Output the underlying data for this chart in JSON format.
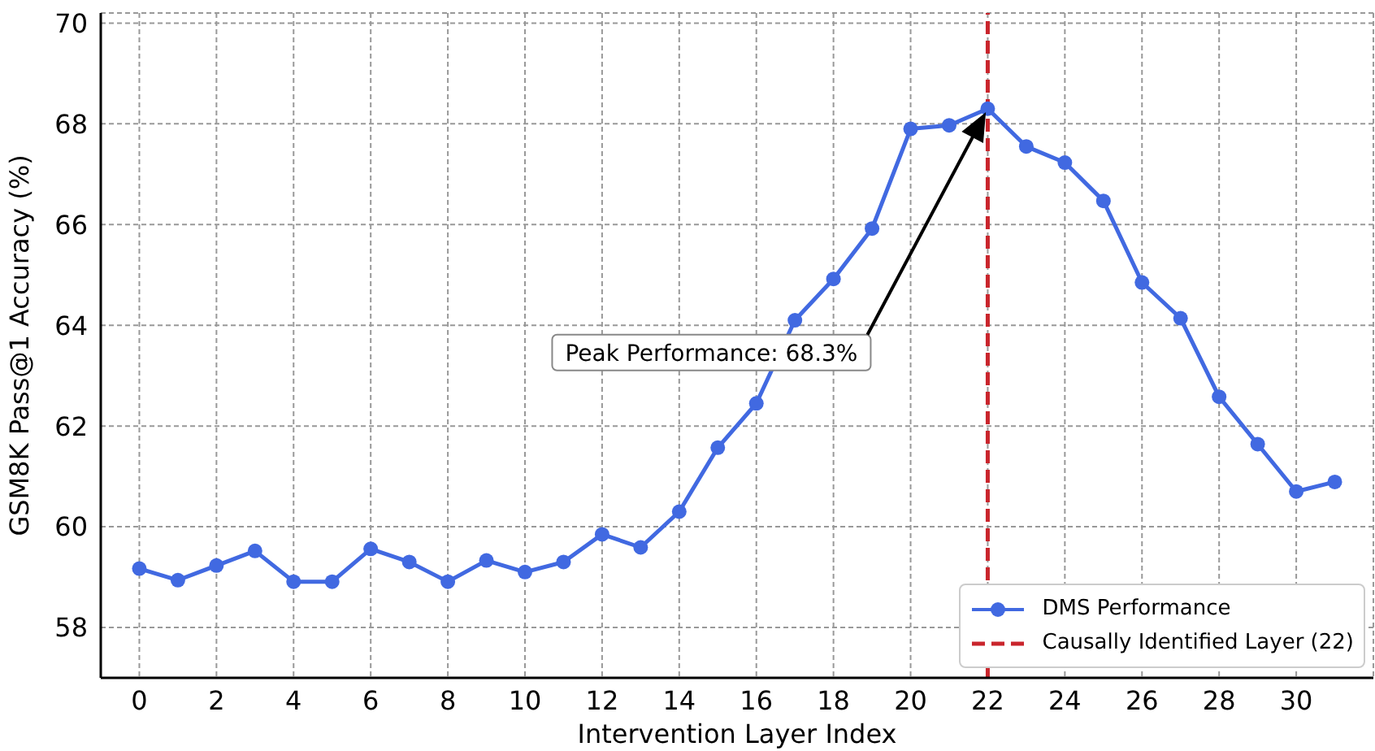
{
  "chart_data": {
    "type": "line",
    "xlabel": "Intervention Layer Index",
    "ylabel": "GSM8K Pass@1 Accuracy (%)",
    "x": [
      0,
      1,
      2,
      3,
      4,
      5,
      6,
      7,
      8,
      9,
      10,
      11,
      12,
      13,
      14,
      15,
      16,
      17,
      18,
      19,
      20,
      21,
      22,
      23,
      24,
      25,
      26,
      27,
      28,
      29,
      30,
      31
    ],
    "series": [
      {
        "name": "DMS Performance",
        "color": "#4169e1",
        "values": [
          59.17,
          58.94,
          59.23,
          59.52,
          58.91,
          58.91,
          59.56,
          59.3,
          58.91,
          59.33,
          59.1,
          59.3,
          59.85,
          59.59,
          60.3,
          61.57,
          62.45,
          64.1,
          64.92,
          65.92,
          67.9,
          67.97,
          68.3,
          67.55,
          67.23,
          66.47,
          64.85,
          64.14,
          62.58,
          61.64,
          60.7,
          60.89
        ]
      }
    ],
    "xlim": [
      -1,
      32
    ],
    "xticks": [
      0,
      2,
      4,
      6,
      8,
      10,
      12,
      14,
      16,
      18,
      20,
      22,
      24,
      26,
      28,
      30
    ],
    "ylim": [
      57,
      70.2
    ],
    "yticks": [
      58,
      60,
      62,
      64,
      66,
      68,
      70
    ],
    "ref_lines": [
      {
        "axis": "x",
        "value": 22,
        "label": "Causally Identified Layer (22)",
        "color": "#c9252c",
        "line_style": "dashed"
      }
    ],
    "annotations": [
      "Peak Performance: 68.3%"
    ],
    "grid": true,
    "legend": "bottom right",
    "marker": "circle",
    "line_style": "solid"
  }
}
